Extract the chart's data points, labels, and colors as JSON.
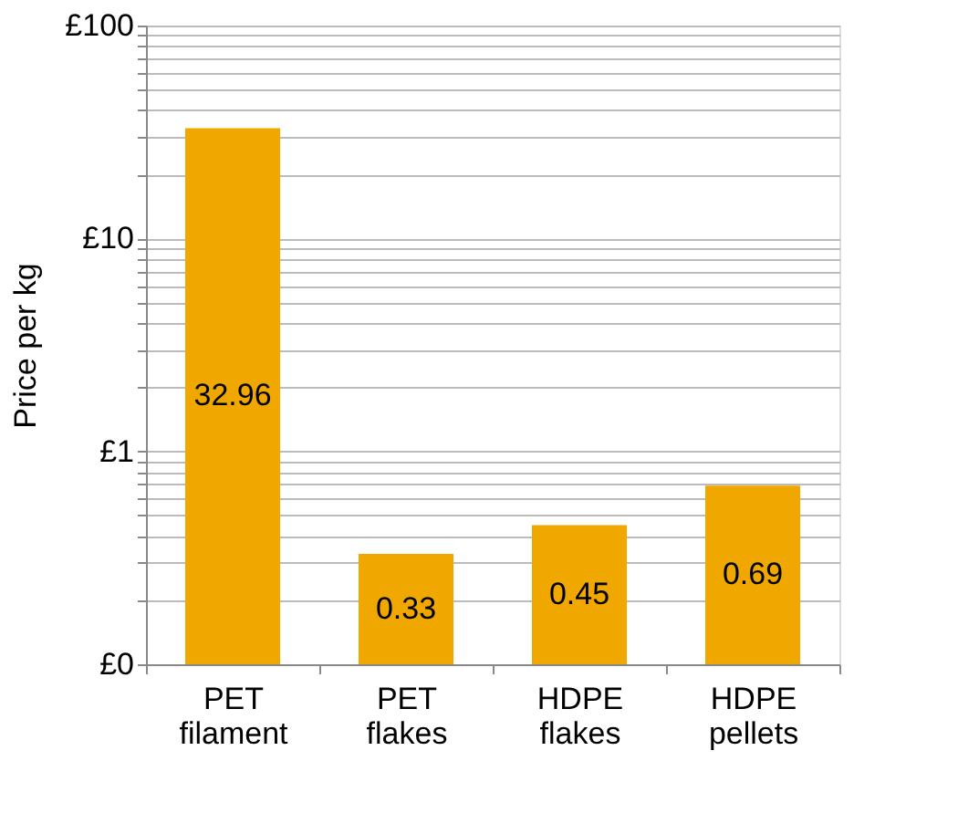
{
  "chart_data": {
    "type": "bar",
    "ylabel": "Price per kg",
    "categories": [
      "PET filament",
      "PET flakes",
      "HDPE flakes",
      "HDPE pellets"
    ],
    "values": [
      32.96,
      0.33,
      0.45,
      0.69
    ],
    "color": "#f0a800",
    "data_labels": true,
    "log": true,
    "ylim": [
      0.1,
      100
    ],
    "yticks": [
      {
        "value": 0.1,
        "label": "£0"
      },
      {
        "value": 0.2,
        "label": null
      },
      {
        "value": 0.3,
        "label": null
      },
      {
        "value": 0.4,
        "label": null
      },
      {
        "value": 0.5,
        "label": null
      },
      {
        "value": 0.6,
        "label": null
      },
      {
        "value": 0.7,
        "label": null
      },
      {
        "value": 0.8,
        "label": null
      },
      {
        "value": 0.9,
        "label": null
      },
      {
        "value": 1,
        "label": "£1"
      },
      {
        "value": 2,
        "label": null
      },
      {
        "value": 3,
        "label": null
      },
      {
        "value": 4,
        "label": null
      },
      {
        "value": 5,
        "label": null
      },
      {
        "value": 6,
        "label": null
      },
      {
        "value": 7,
        "label": null
      },
      {
        "value": 8,
        "label": null
      },
      {
        "value": 9,
        "label": null
      },
      {
        "value": 10,
        "label": "£10"
      },
      {
        "value": 20,
        "label": null
      },
      {
        "value": 30,
        "label": null
      },
      {
        "value": 40,
        "label": null
      },
      {
        "value": 50,
        "label": null
      },
      {
        "value": 60,
        "label": null
      },
      {
        "value": 70,
        "label": null
      },
      {
        "value": 80,
        "label": null
      },
      {
        "value": 90,
        "label": null
      },
      {
        "value": 100,
        "label": "£100"
      }
    ],
    "grid": "y"
  }
}
